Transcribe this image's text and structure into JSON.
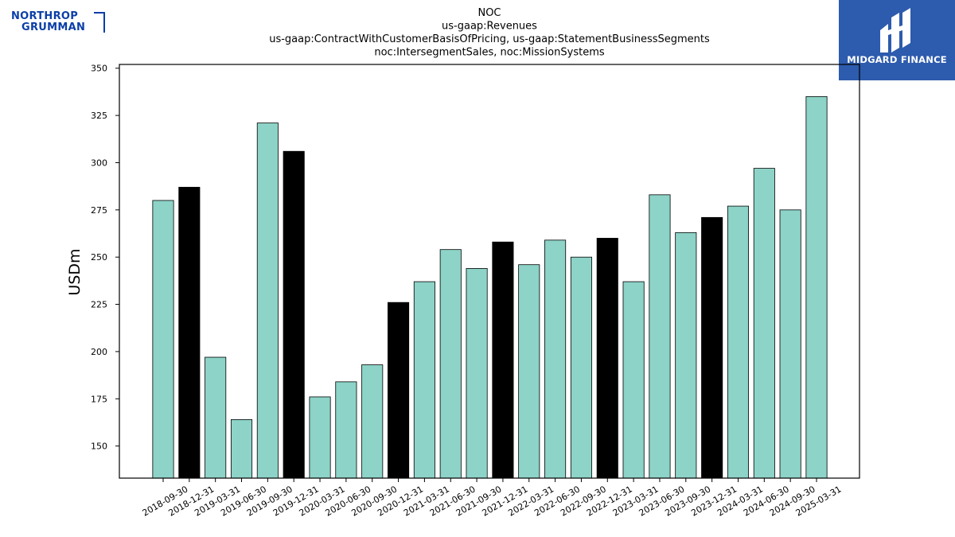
{
  "logos": {
    "left": {
      "line1": "NORTHROP",
      "line2": "GRUMMAN",
      "color": "#0b3ea8"
    },
    "right": {
      "text": "MIDGARD FINANCE",
      "background": "#2d5bad"
    }
  },
  "chart_data": {
    "type": "bar",
    "title": [
      "NOC",
      "us-gaap:Revenues",
      "us-gaap:ContractWithCustomerBasisOfPricing, us-gaap:StatementBusinessSegments",
      "noc:IntersegmentSales, noc:MissionSystems"
    ],
    "xlabel": "",
    "ylabel": "USDm",
    "ylim": [
      133,
      352
    ],
    "yticks": [
      150,
      175,
      200,
      225,
      250,
      275,
      300,
      325,
      350
    ],
    "grid": false,
    "legend": "none",
    "colors": {
      "quarter": "#8dd3c7",
      "year_end": "#000000",
      "edge": "#000000"
    },
    "categories": [
      "2018-09-30",
      "2018-12-31",
      "2019-03-31",
      "2019-06-30",
      "2019-09-30",
      "2019-12-31",
      "2020-03-31",
      "2020-06-30",
      "2020-09-30",
      "2020-12-31",
      "2021-03-31",
      "2021-06-30",
      "2021-09-30",
      "2021-12-31",
      "2022-03-31",
      "2022-06-30",
      "2022-09-30",
      "2022-12-31",
      "2023-03-31",
      "2023-06-30",
      "2023-09-30",
      "2023-12-31",
      "2024-03-31",
      "2024-06-30",
      "2024-09-30",
      "2025-03-31"
    ],
    "values": [
      280,
      287,
      197,
      164,
      321,
      306,
      176,
      184,
      193,
      226,
      237,
      254,
      244,
      258,
      246,
      259,
      250,
      260,
      237,
      283,
      263,
      271,
      277,
      297,
      275,
      335
    ],
    "highlight": [
      false,
      true,
      false,
      false,
      false,
      true,
      false,
      false,
      false,
      true,
      false,
      false,
      false,
      true,
      false,
      false,
      false,
      true,
      false,
      false,
      false,
      true,
      false,
      false,
      false,
      false
    ]
  }
}
